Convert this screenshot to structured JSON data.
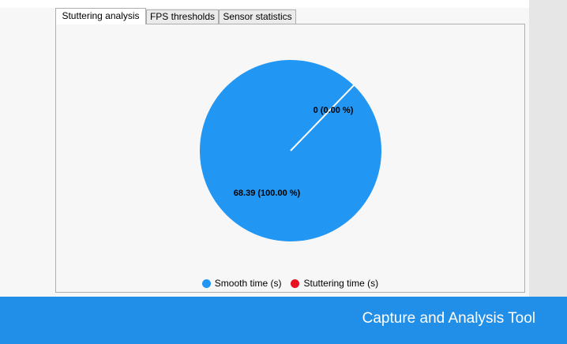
{
  "tabs": [
    {
      "label": "Stuttering analysis",
      "active": true
    },
    {
      "label": "FPS thresholds",
      "active": false
    },
    {
      "label": "Sensor statistics",
      "active": false
    }
  ],
  "footer": {
    "app_title": "Capture and Analysis Tool"
  },
  "colors": {
    "smooth": "#2196f3",
    "stuttering": "#e81123",
    "footer": "#218fe8"
  },
  "chart_data": {
    "type": "pie",
    "title": "",
    "series": [
      {
        "name": "Smooth time (s)",
        "value": 68.39,
        "percent": 100.0,
        "label": "68.39 (100.00 %)"
      },
      {
        "name": "Stuttering time (s)",
        "value": 0,
        "percent": 0.0,
        "label": "0 (0.00 %)"
      }
    ],
    "legend_position": "bottom"
  }
}
